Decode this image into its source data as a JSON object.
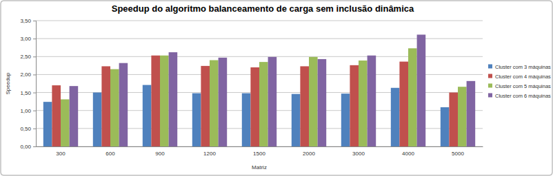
{
  "chart_data": {
    "type": "bar",
    "title": "Speedup do algoritmo balanceamento de carga sem inclusão dinâmica",
    "x_label": "Matriz",
    "y_label": "Speedup",
    "categories": [
      "300",
      "600",
      "900",
      "1200",
      "1500",
      "2000",
      "3000",
      "4000",
      "5000"
    ],
    "series": [
      {
        "name": "Cluster com 3 máquinas",
        "color": "#4f81bd",
        "values": [
          1.24,
          1.5,
          1.71,
          1.48,
          1.48,
          1.46,
          1.47,
          1.63,
          1.09
        ]
      },
      {
        "name": "Cluster com 4 máquinas",
        "color": "#c0504d",
        "values": [
          1.7,
          2.23,
          2.53,
          2.24,
          2.2,
          2.23,
          2.26,
          2.36,
          1.5
        ]
      },
      {
        "name": "Cluster com 5 máquinas",
        "color": "#9bbb59",
        "values": [
          1.31,
          2.15,
          2.53,
          2.4,
          2.35,
          2.49,
          2.39,
          2.73,
          1.66
        ]
      },
      {
        "name": "Cluster com 6 máquinas",
        "color": "#8064a2",
        "values": [
          1.68,
          2.32,
          2.62,
          2.47,
          2.49,
          2.43,
          2.53,
          3.11,
          1.82
        ]
      }
    ],
    "ylim": [
      0,
      3.5
    ],
    "yticks": [
      {
        "value": 0,
        "label": "0,00"
      },
      {
        "value": 0.5,
        "label": "0,50"
      },
      {
        "value": 1,
        "label": "1,00"
      },
      {
        "value": 1.5,
        "label": "1,50"
      },
      {
        "value": 2,
        "label": "2,00"
      },
      {
        "value": 2.5,
        "label": "2,50"
      },
      {
        "value": 3,
        "label": "3,00"
      },
      {
        "value": 3.5,
        "label": "3,50"
      }
    ],
    "grid": true,
    "legend": "right"
  }
}
